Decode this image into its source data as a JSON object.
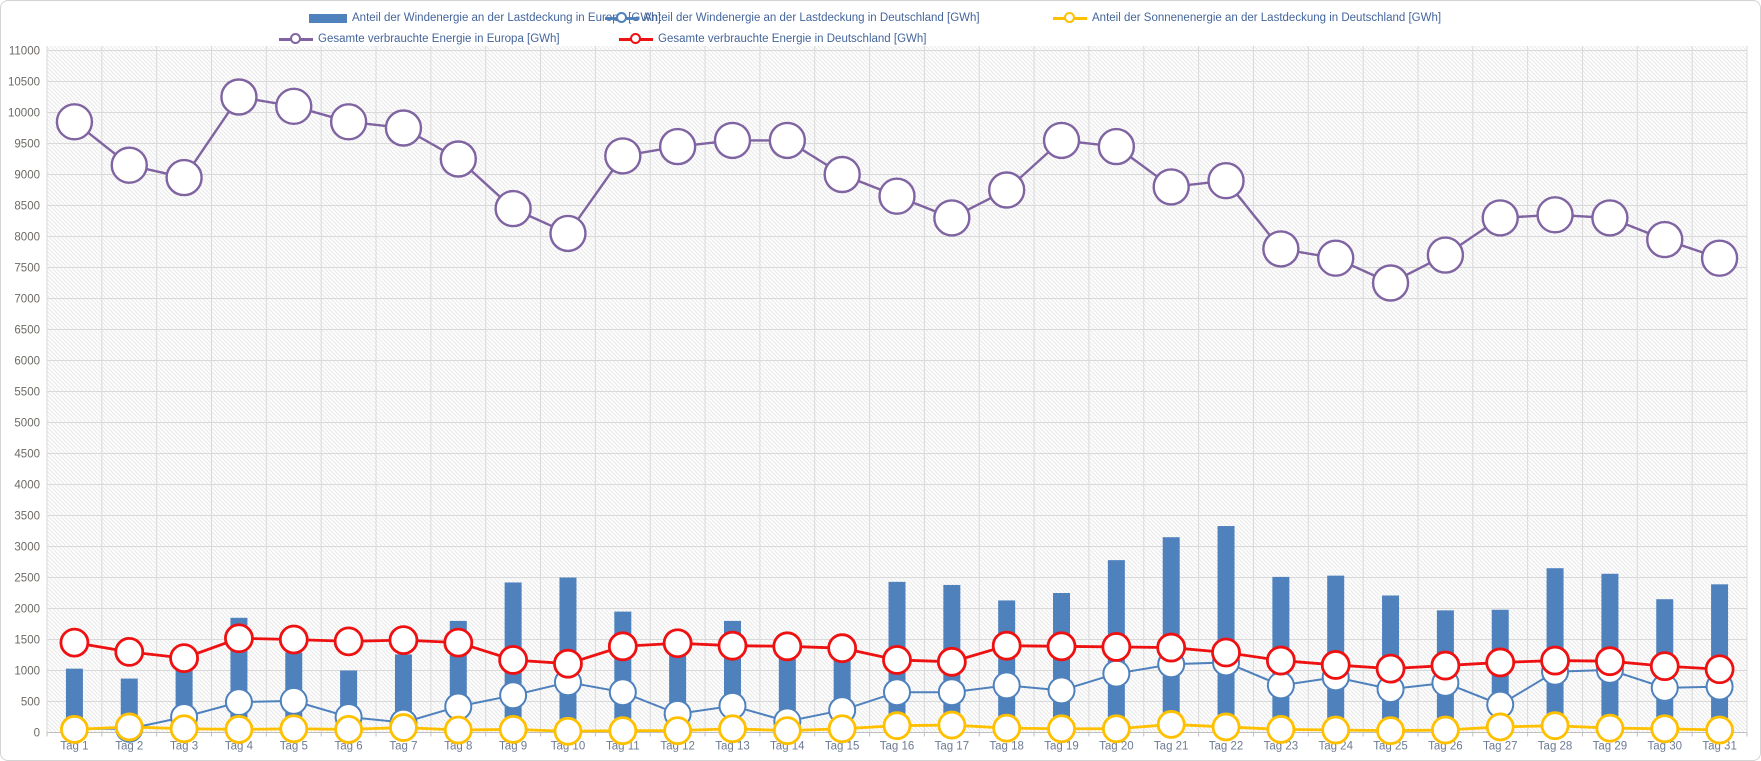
{
  "chart_data": {
    "type": "combo",
    "categories": [
      "Tag 1",
      "Tag 2",
      "Tag 3",
      "Tag 4",
      "Tag 5",
      "Tag 6",
      "Tag 7",
      "Tag 8",
      "Tag 9",
      "Tag 10",
      "Tag 11",
      "Tag 12",
      "Tag 13",
      "Tag 14",
      "Tag 15",
      "Tag 16",
      "Tag 17",
      "Tag 18",
      "Tag 19",
      "Tag 20",
      "Tag 21",
      "Tag 22",
      "Tag 23",
      "Tag 24",
      "Tag 25",
      "Tag 26",
      "Tag 27",
      "Tag 28",
      "Tag 29",
      "Tag 30",
      "Tag 31"
    ],
    "y_axis": {
      "min": 0,
      "max": 11000,
      "step": 500
    },
    "grid": "on",
    "legend_position": "top",
    "series": [
      {
        "name": "Anteil der Windenergie an der Lastdeckung in Europa [GWh]",
        "type": "bar",
        "color": "#4f81bd",
        "values": [
          1030,
          870,
          1250,
          1850,
          1290,
          1000,
          1260,
          1800,
          2420,
          2500,
          1950,
          1250,
          1800,
          1480,
          1550,
          2430,
          2380,
          2130,
          2250,
          2780,
          3150,
          3330,
          2510,
          2530,
          2210,
          1970,
          1980,
          2650,
          2560,
          2150,
          2390
        ]
      },
      {
        "name": "Anteil der Windenergie an der Lastdeckung in Deutschland [GWh]",
        "type": "line",
        "color": "#4f81bd",
        "marker_radius": 13,
        "line_width": 2,
        "values": [
          60,
          60,
          250,
          490,
          510,
          250,
          160,
          420,
          600,
          810,
          650,
          300,
          430,
          180,
          360,
          650,
          650,
          760,
          680,
          950,
          1100,
          1130,
          760,
          890,
          700,
          800,
          450,
          980,
          1010,
          720,
          740
        ]
      },
      {
        "name": "Anteil der Sonnenenergie an der Lastdeckung in Deutschland [GWh]",
        "type": "line",
        "color": "#ffc000",
        "marker_radius": 13,
        "line_width": 2.8,
        "values": [
          50,
          90,
          60,
          50,
          60,
          50,
          80,
          40,
          50,
          20,
          30,
          30,
          60,
          30,
          60,
          110,
          120,
          70,
          60,
          60,
          130,
          90,
          50,
          40,
          30,
          40,
          90,
          110,
          70,
          60,
          40
        ]
      },
      {
        "name": "Gesamte verbrauchte Energie in Europa [GWh]",
        "type": "line",
        "color": "#8064a2",
        "marker_radius": 17.5,
        "line_width": 2.4,
        "values": [
          9850,
          9150,
          8950,
          10250,
          10100,
          9850,
          9750,
          9250,
          8450,
          8050,
          9300,
          9450,
          9550,
          9550,
          9000,
          8650,
          8300,
          8750,
          9550,
          9450,
          8800,
          8900,
          7800,
          7650,
          7250,
          7700,
          8300,
          8350,
          8300,
          7950,
          7650
        ]
      },
      {
        "name": "Gesamte verbrauchte Energie in Deutschland [GWh]",
        "type": "line",
        "color": "#ee1111",
        "marker_radius": 13.5,
        "line_width": 2.8,
        "values": [
          1450,
          1300,
          1200,
          1520,
          1500,
          1470,
          1490,
          1450,
          1170,
          1110,
          1390,
          1440,
          1400,
          1390,
          1360,
          1170,
          1140,
          1400,
          1390,
          1380,
          1370,
          1290,
          1160,
          1090,
          1030,
          1080,
          1130,
          1160,
          1150,
          1070,
          1020
        ]
      }
    ],
    "draw_order": [
      0,
      3,
      1,
      4,
      2
    ]
  },
  "colors": {
    "gridline": "#d9d9d9",
    "axis_line": "#bfbfbf",
    "hatch_stroke": "#e9e9e9",
    "y_tick_text": "#6d6a65",
    "x_tick_text": "#6d7b93",
    "legend_text": "#44659c"
  }
}
